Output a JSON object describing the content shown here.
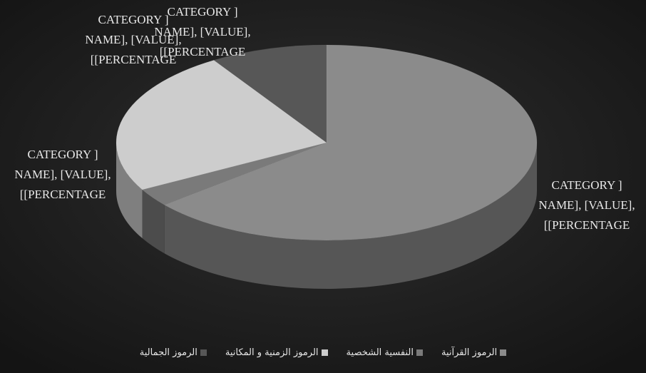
{
  "chart_data": {
    "type": "pie",
    "style": "3d",
    "categories": [
      "الرموز القرآنية",
      "النفسية الشخصية",
      "الرموز الزمنية و المكانية",
      "الرموز الجمالية"
    ],
    "values": [
      64,
      3,
      24,
      9
    ],
    "colors": [
      "#8b8b8b",
      "#7a7a7a",
      "#cdcdcd",
      "#575757"
    ],
    "data_labels": [
      [
        "CATEGORY ]",
        "NAME], [VALUE],",
        "[[PERCENTAGE"
      ],
      [
        "CATEGORY ]",
        "NAME], [VALUE],",
        "[[PERCENTAGE"
      ],
      [
        "CATEGORY ]",
        "NAME], [VALUE],",
        "[[PERCENTAGE"
      ],
      [
        "CATEGORY ]",
        "NAME], [VALUE],",
        "[[PERCENTAGE"
      ]
    ],
    "legend_position": "bottom",
    "background": "#1f1f1f"
  }
}
